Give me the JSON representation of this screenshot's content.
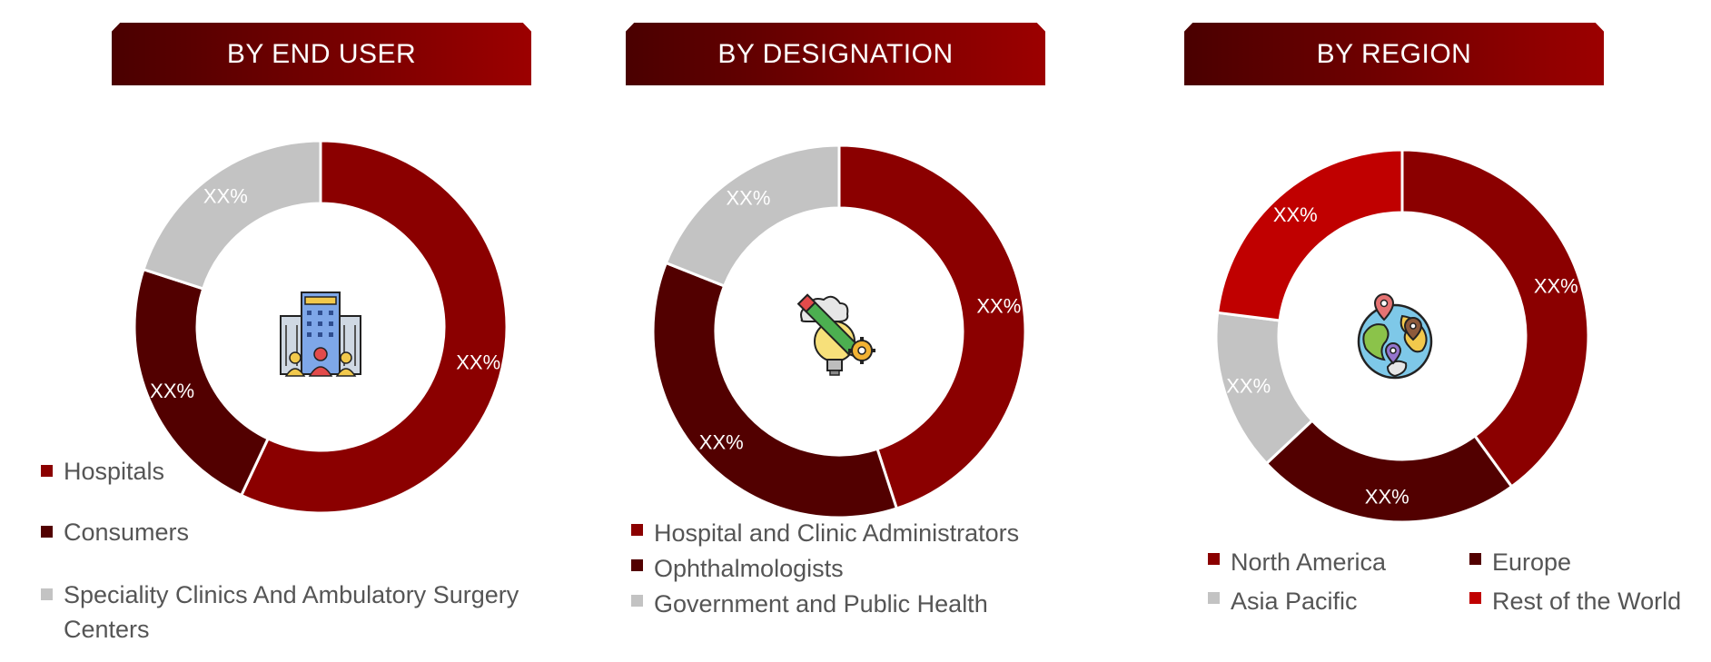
{
  "colors": {
    "dark_red": "#8b0000",
    "maroon": "#520000",
    "gray": "#c3c3c3",
    "bright_red": "#c00000",
    "banner_from": "#4a0000",
    "banner_to": "#9c0000"
  },
  "chart_data": [
    {
      "type": "donut",
      "title": "BY END USER",
      "icon": "hospital-building-icon",
      "series": [
        {
          "name": "Hospitals",
          "value": 57,
          "color": "#8b0000",
          "label": "XX%"
        },
        {
          "name": "Consumers",
          "value": 23,
          "color": "#520000",
          "label": "XX%"
        },
        {
          "name": "Speciality Clinics And Ambulatory Surgery Centers",
          "value": 20,
          "color": "#c3c3c3",
          "label": "XX%"
        }
      ],
      "legend_lines": [
        [
          "Hospitals"
        ],
        [
          "Consumers"
        ],
        [
          "Speciality Clinics And Ambulatory Surgery",
          "Centers"
        ]
      ]
    },
    {
      "type": "donut",
      "title": "BY DESIGNATION",
      "icon": "pencil-lightbulb-gear-icon",
      "series": [
        {
          "name": "Hospital and Clinic Administrators",
          "value": 45,
          "color": "#8b0000",
          "label": "XX%"
        },
        {
          "name": "Ophthalmologists",
          "value": 36,
          "color": "#520000",
          "label": "XX%"
        },
        {
          "name": "Government and Public Health",
          "value": 19,
          "color": "#c3c3c3",
          "label": "XX%"
        }
      ],
      "legend_lines": [
        [
          "Hospital and Clinic Administrators"
        ],
        [
          "Ophthalmologists"
        ],
        [
          "Government and Public Health"
        ]
      ]
    },
    {
      "type": "donut",
      "title": "BY REGION",
      "icon": "globe-pins-icon",
      "series": [
        {
          "name": "North America",
          "value": 40,
          "color": "#8b0000",
          "label": "XX%"
        },
        {
          "name": "Europe",
          "value": 23,
          "color": "#520000",
          "label": "XX%"
        },
        {
          "name": "Asia Pacific",
          "value": 14,
          "color": "#c3c3c3",
          "label": "XX%"
        },
        {
          "name": "Rest of the World",
          "value": 23,
          "color": "#c00000",
          "label": "XX%"
        }
      ],
      "legend_lines": [
        [
          "North America"
        ],
        [
          "Europe"
        ],
        [
          "Asia Pacific"
        ],
        [
          "Rest of the World"
        ]
      ]
    }
  ]
}
